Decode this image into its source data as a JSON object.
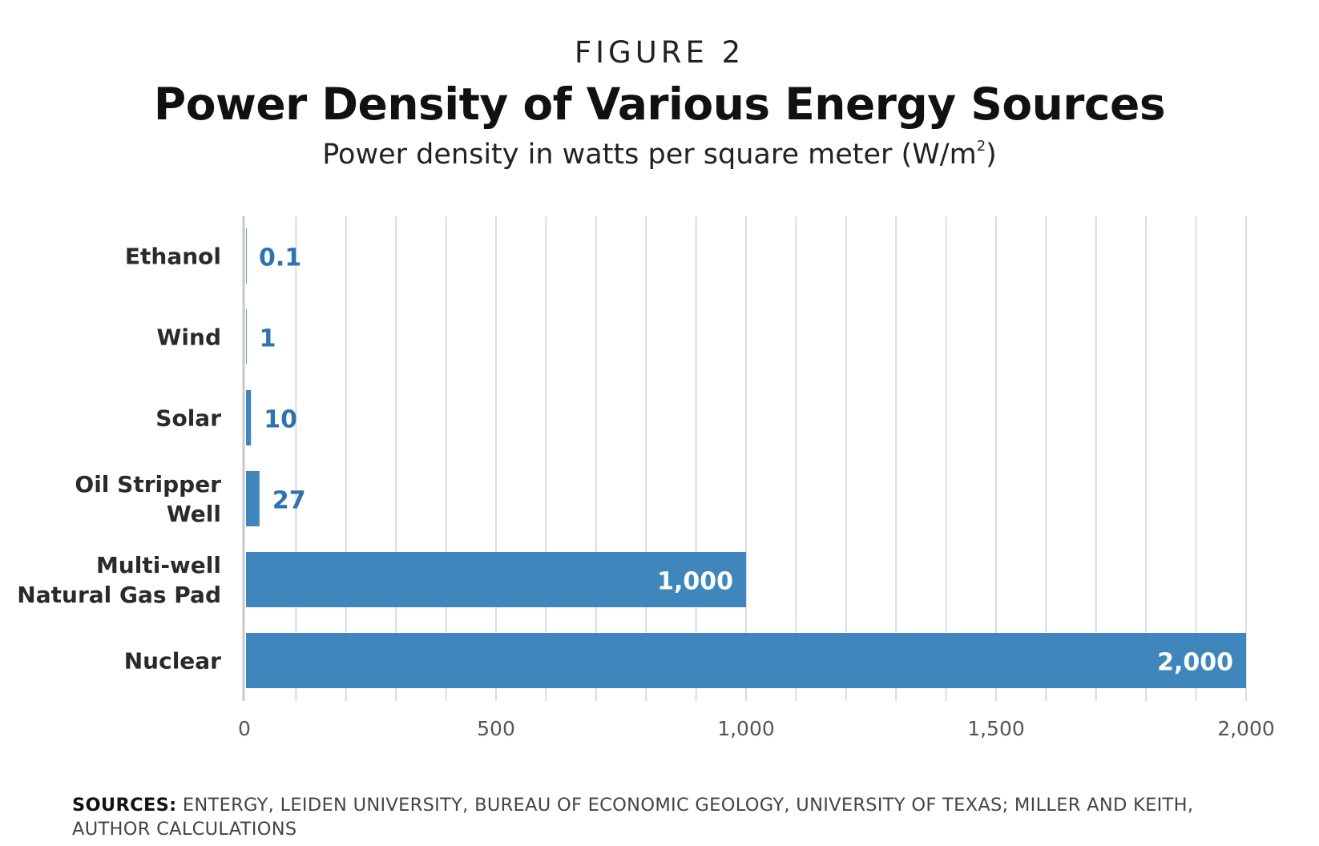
{
  "header": {
    "kicker": "FIGURE 2",
    "title": "Power Density of Various Energy Sources",
    "subtitle_main": "Power density in watts per square meter (W/m",
    "subtitle_sup": "2",
    "subtitle_end": ")"
  },
  "footer": {
    "sources_label": "SOURCES:",
    "sources_text": "ENTERGY, LEIDEN UNIVERSITY, BUREAU OF ECONOMIC GEOLOGY, UNIVERSITY OF TEXAS; MILLER AND KEITH, AUTHOR CALCULATIONS"
  },
  "chart_data": {
    "type": "bar",
    "orientation": "horizontal",
    "categories": [
      [
        "Ethanol"
      ],
      [
        "Wind"
      ],
      [
        "Solar"
      ],
      [
        "Oil Stripper",
        "Well"
      ],
      [
        "Multi-well",
        "Natural Gas Pad"
      ],
      [
        "Nuclear"
      ]
    ],
    "values": [
      0.1,
      1,
      10,
      27,
      1000,
      2000
    ],
    "value_labels": [
      "0.1",
      "1",
      "10",
      "27",
      "1,000",
      "2,000"
    ],
    "xlim": [
      0,
      2000
    ],
    "x_ticks": [
      0,
      500,
      1000,
      1500,
      2000
    ],
    "x_tick_labels": [
      "0",
      "500",
      "1,000",
      "1,500",
      "2,000"
    ],
    "grid": true,
    "bar_color": "#3f86bc",
    "label_color": "#2f72b0",
    "grid_color": "#dcdcdc"
  }
}
